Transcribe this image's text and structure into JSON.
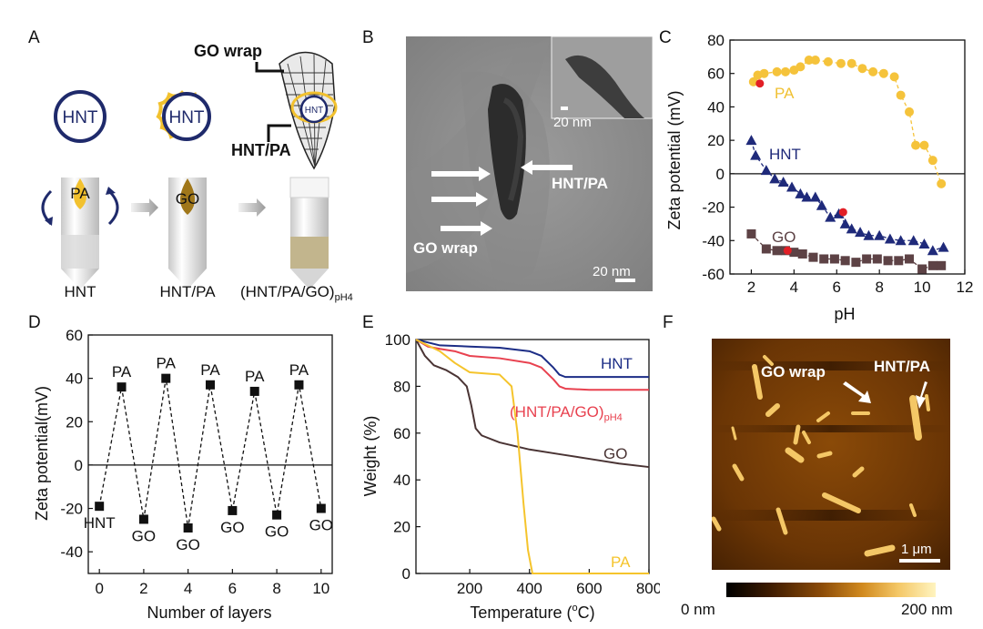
{
  "panel_labels": {
    "a": "A",
    "b": "B",
    "c": "C",
    "d": "D",
    "e": "E",
    "f": "F"
  },
  "panel_a": {
    "go_wrap_label": "GO wrap",
    "hnt_pa_label": "HNT/PA",
    "circle_hnt": "HNT",
    "circle_hnt2": "HNT",
    "circle_hnt3": "HNT",
    "tube1_liquid": "PA",
    "tube2_liquid": "GO",
    "tube1_caption": "HNT",
    "tube2_caption": "HNT/PA",
    "tube3_caption_main": "(HNT/PA/GO)",
    "tube3_caption_sub": "pH4",
    "colors": {
      "navy": "#1f2a6b",
      "yellow": "#f2c12e",
      "go_brown": "#a0771a"
    }
  },
  "panel_b": {
    "inset_scale": "20 nm",
    "main_scale": "20 nm",
    "hnt_pa_label": "HNT/PA",
    "go_wrap_label": "GO wrap"
  },
  "chart_data": [
    {
      "id": "C",
      "type": "scatter",
      "xlabel": "pH",
      "ylabel": "Zeta potential (mV)",
      "xlim": [
        1,
        12
      ],
      "ylim": [
        -60,
        80
      ],
      "xticks": [
        2,
        4,
        6,
        8,
        10,
        12
      ],
      "yticks": [
        -60,
        -40,
        -20,
        0,
        20,
        40,
        60,
        80
      ],
      "series": [
        {
          "name": "PA",
          "color": "#f5c33b",
          "x": [
            2.1,
            2.3,
            2.6,
            3.2,
            3.6,
            4.0,
            4.3,
            4.7,
            5.0,
            5.6,
            6.2,
            6.7,
            7.2,
            7.7,
            8.2,
            8.7,
            9.0,
            9.4,
            9.7,
            10.1,
            10.5,
            10.9
          ],
          "y": [
            55,
            59,
            60,
            61,
            61,
            62,
            64,
            68,
            68,
            67,
            66,
            66,
            63,
            61,
            60,
            58,
            47,
            37,
            17,
            17,
            8,
            -6
          ]
        },
        {
          "name": "HNT",
          "color": "#1f2a7a",
          "x": [
            2.0,
            2.2,
            2.7,
            3.1,
            3.5,
            3.9,
            4.3,
            4.6,
            5.0,
            5.3,
            5.7,
            6.1,
            6.4,
            6.7,
            7.1,
            7.5,
            8.0,
            8.5,
            9.0,
            9.6,
            10.1,
            10.5,
            11.0
          ],
          "y": [
            20,
            11,
            2,
            -3,
            -5,
            -8,
            -12,
            -14,
            -14,
            -19,
            -26,
            -24,
            -30,
            -33,
            -35,
            -37,
            -37,
            -39,
            -40,
            -40,
            -42,
            -46,
            -44
          ]
        },
        {
          "name": "GO",
          "color": "#5d4245",
          "x": [
            2.0,
            2.7,
            3.2,
            3.6,
            4.0,
            4.4,
            4.9,
            5.4,
            5.9,
            6.4,
            6.9,
            7.4,
            7.9,
            8.4,
            8.9,
            9.4,
            10.0,
            10.5,
            10.9
          ],
          "y": [
            -36,
            -45,
            -46,
            -46,
            -47,
            -48,
            -50,
            -51,
            -51,
            -52,
            -53,
            -51,
            -51,
            -52,
            -52,
            -51,
            -57,
            -55,
            -55
          ]
        }
      ],
      "highlight_points": [
        {
          "x": 2.4,
          "y": 54
        },
        {
          "x": 6.3,
          "y": -23
        },
        {
          "x": 3.7,
          "y": -46
        }
      ],
      "labels": {
        "pa": "PA",
        "hnt": "HNT",
        "go": "GO"
      }
    },
    {
      "id": "D",
      "type": "line",
      "xlabel": "Number of layers",
      "ylabel": "Zeta potential(mV)",
      "xlim": [
        -0.5,
        10.5
      ],
      "ylim": [
        -50,
        60
      ],
      "xticks": [
        0,
        2,
        4,
        6,
        8,
        10
      ],
      "yticks": [
        -40,
        -20,
        0,
        20,
        40,
        60
      ],
      "x": [
        0,
        1,
        2,
        3,
        4,
        5,
        6,
        7,
        8,
        9,
        10
      ],
      "values": [
        -19,
        36,
        -25,
        40,
        -29,
        37,
        -21,
        34,
        -23,
        37,
        -20
      ],
      "point_labels": [
        "HNT",
        "PA",
        "GO",
        "PA",
        "GO",
        "PA",
        "GO",
        "PA",
        "GO",
        "PA",
        "GO"
      ]
    },
    {
      "id": "E",
      "type": "line",
      "xlabel_main": "Temperature (",
      "xlabel_sup": "o",
      "xlabel_end": "C)",
      "ylabel": "Weight (%)",
      "xlim": [
        20,
        800
      ],
      "ylim": [
        0,
        100
      ],
      "xticks": [
        200,
        400,
        600,
        800
      ],
      "yticks": [
        0,
        20,
        40,
        60,
        80,
        100
      ],
      "series": [
        {
          "name": "HNT",
          "color": "#1c2d86",
          "x": [
            20,
            100,
            200,
            300,
            400,
            440,
            480,
            500,
            520,
            600,
            700,
            800
          ],
          "y": [
            100,
            97.5,
            97,
            96.5,
            95,
            93,
            88,
            85,
            84,
            84,
            84,
            84
          ]
        },
        {
          "name": "(HNT/PA/GO)pH4",
          "color": "#e8414f",
          "x": [
            20,
            60,
            100,
            150,
            200,
            300,
            400,
            440,
            480,
            500,
            520,
            600,
            700,
            800
          ],
          "y": [
            100,
            97,
            96,
            95,
            93,
            92,
            90,
            88,
            83,
            80,
            79,
            78.5,
            78.5,
            78.5
          ]
        },
        {
          "name": "GO",
          "color": "#4a3434",
          "x": [
            20,
            50,
            80,
            120,
            160,
            190,
            205,
            220,
            240,
            300,
            400,
            500,
            600,
            700,
            800
          ],
          "y": [
            100,
            93,
            89,
            87,
            84,
            80,
            72,
            62,
            59,
            56,
            53,
            51,
            49,
            47,
            45.5
          ]
        },
        {
          "name": "PA",
          "color": "#f5c42c",
          "x": [
            20,
            100,
            150,
            200,
            300,
            340,
            360,
            380,
            395,
            410,
            800
          ],
          "y": [
            100,
            95,
            90,
            86,
            85,
            80,
            60,
            30,
            10,
            0,
            0
          ]
        }
      ],
      "labels": {
        "hnt": "HNT",
        "mix_main": "(HNT/PA/GO)",
        "mix_sub": "pH4",
        "go": "GO",
        "pa": "PA"
      }
    }
  ],
  "panel_f": {
    "go_wrap_label": "GO wrap",
    "hnt_pa_label": "HNT/PA",
    "scale_label": "1 μm",
    "colorbar_min": "0 nm",
    "colorbar_max": "200 nm"
  }
}
